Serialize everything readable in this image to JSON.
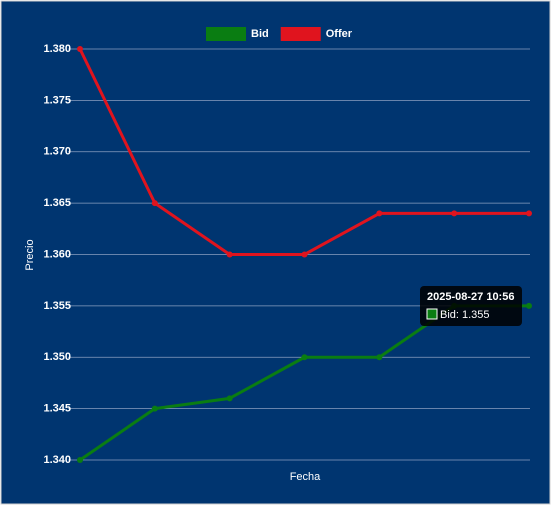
{
  "chart_data": {
    "type": "line",
    "x_label": "Fecha",
    "y_label": "Precio",
    "categories": [
      null,
      null,
      null,
      null,
      null,
      null,
      null
    ],
    "series": [
      {
        "name": "Bid",
        "color": "#0a7d12",
        "values": [
          1.34,
          1.345,
          1.346,
          1.35,
          1.35,
          1.355,
          1.355
        ]
      },
      {
        "name": "Offer",
        "color": "#e0141e",
        "values": [
          1.38,
          1.365,
          1.36,
          1.36,
          1.364,
          1.364,
          1.364
        ]
      }
    ],
    "ylim": [
      1.34,
      1.38
    ],
    "yticks": [
      {
        "value": 1.34,
        "label": "1.340"
      },
      1.345,
      {
        "value": 1.35,
        "label": "1.350"
      },
      1.355,
      {
        "value": 1.36,
        "label": "1.360"
      },
      1.365,
      {
        "value": 1.37,
        "label": "1.370"
      },
      1.375,
      {
        "value": 1.38,
        "label": "1.380"
      }
    ],
    "grid": true,
    "legend": "top",
    "tooltip": {
      "title": "2025-08-27 10:56",
      "label": "Bid: 1.355"
    }
  }
}
